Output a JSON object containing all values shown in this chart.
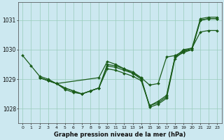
{
  "title": "Graphe pression niveau de la mer (hPa)",
  "bg_color": "#cce8f0",
  "grid_color": "#99ccbb",
  "line_color": "#1a5c1a",
  "xlim": [
    -0.5,
    23.5
  ],
  "ylim": [
    1027.5,
    1031.6
  ],
  "yticks": [
    1028,
    1029,
    1030,
    1031
  ],
  "xticks": [
    0,
    1,
    2,
    3,
    4,
    5,
    6,
    7,
    8,
    9,
    10,
    11,
    12,
    13,
    14,
    15,
    16,
    17,
    18,
    19,
    20,
    21,
    22,
    23
  ],
  "series1_x": [
    0,
    1,
    2,
    3,
    4,
    5,
    6,
    7,
    8,
    9,
    10,
    11,
    12,
    13,
    14,
    15,
    16,
    17,
    18,
    19,
    20,
    21,
    22,
    23
  ],
  "series1_y": [
    1029.8,
    1029.45,
    1029.1,
    1029.0,
    1028.85,
    1028.65,
    1028.55,
    1028.5,
    1028.6,
    1028.7,
    1029.5,
    1029.45,
    1029.35,
    1029.2,
    1029.05,
    1028.05,
    1028.15,
    1028.35,
    1029.7,
    1029.95,
    1030.0,
    1031.0,
    1031.05,
    1031.05
  ],
  "series2_x": [
    2,
    3,
    4,
    5,
    6,
    7,
    8,
    9,
    10,
    11,
    12,
    13,
    14,
    15,
    16,
    17,
    18,
    19,
    20,
    21,
    22,
    23
  ],
  "series2_y": [
    1029.05,
    1028.95,
    1028.85,
    1028.7,
    1028.6,
    1028.5,
    1028.6,
    1028.7,
    1029.35,
    1029.3,
    1029.2,
    1029.1,
    1028.95,
    1028.1,
    1028.25,
    1028.45,
    1029.75,
    1030.0,
    1030.05,
    1031.05,
    1031.1,
    1031.1
  ],
  "series3_x": [
    2,
    3,
    4,
    9,
    10,
    11,
    12,
    13,
    14,
    15,
    16,
    17,
    18,
    19,
    20,
    21,
    22,
    23
  ],
  "series3_y": [
    1029.05,
    1028.95,
    1028.85,
    1029.05,
    1029.6,
    1029.5,
    1029.35,
    1029.25,
    1029.05,
    1028.8,
    1028.85,
    1029.75,
    1029.8,
    1029.95,
    1030.05,
    1030.6,
    1030.65,
    1030.65
  ],
  "series4_x": [
    2,
    3,
    4,
    5,
    6,
    7,
    8,
    9,
    10,
    11,
    12,
    13,
    14,
    15,
    16,
    17,
    18,
    19,
    20,
    21,
    22,
    23
  ],
  "series4_y": [
    1029.05,
    1028.95,
    1028.85,
    1028.7,
    1028.6,
    1028.5,
    1028.6,
    1028.7,
    1029.45,
    1029.4,
    1029.3,
    1029.2,
    1029.0,
    1028.1,
    1028.2,
    1028.4,
    1029.75,
    1029.9,
    1030.0,
    1031.0,
    1031.05,
    1031.05
  ]
}
